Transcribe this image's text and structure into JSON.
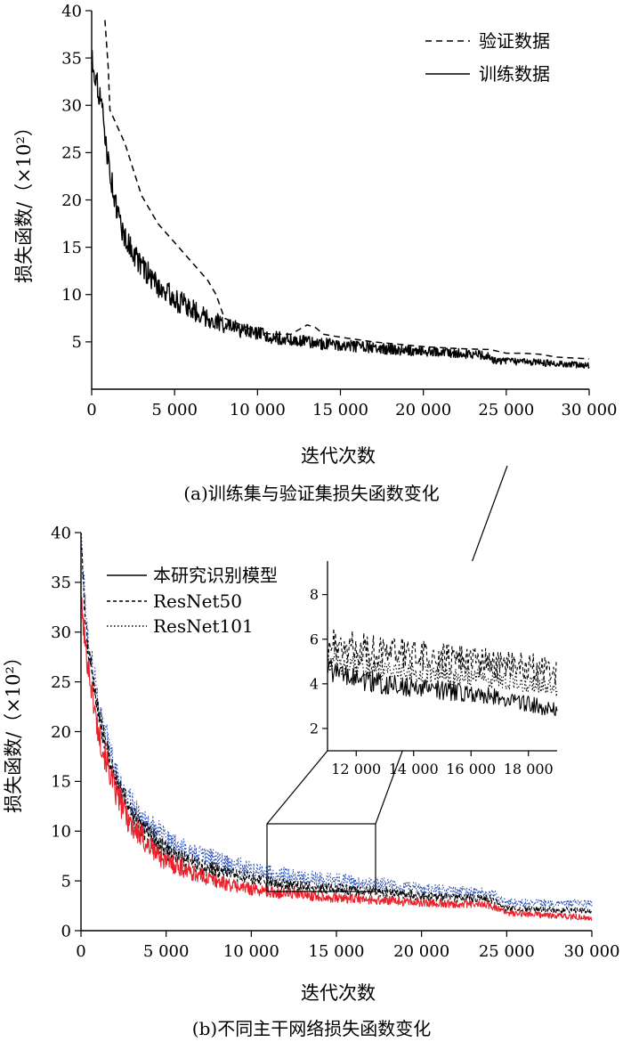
{
  "chart_data": [
    {
      "id": "a",
      "type": "line",
      "caption": "(a)训练集与验证集损失函数变化",
      "xlabel": "迭代次数",
      "ylabel": "损失函数/（×10²）",
      "xlim": [
        0,
        30000
      ],
      "ylim": [
        0,
        40
      ],
      "x_ticks": [
        0,
        5000,
        10000,
        15000,
        20000,
        25000,
        30000
      ],
      "x_tick_labels": [
        "0",
        "5 000",
        "10 000",
        "15 000",
        "20 000",
        "25 000",
        "30 000"
      ],
      "y_ticks": [
        5,
        10,
        15,
        20,
        25,
        30,
        35,
        40
      ],
      "y_tick_labels": [
        "5",
        "10",
        "15",
        "20",
        "25",
        "30",
        "35",
        "40"
      ],
      "legend_position": "top-right",
      "series": [
        {
          "name": "验证数据",
          "style": "dashed",
          "color": "#000000",
          "noise": 0,
          "x": [
            800,
            1000,
            1100,
            2000,
            3000,
            4000,
            5000,
            6000,
            7000,
            7500,
            8000,
            9000,
            10000,
            11000,
            12000,
            13000,
            13500,
            14000,
            15000,
            17000,
            20000,
            22000,
            23800,
            24000,
            25000,
            26000,
            27000,
            28000,
            30000
          ],
          "values": [
            39,
            34,
            29.5,
            26,
            20.5,
            17.5,
            15.5,
            13.5,
            11.5,
            10,
            7.5,
            6.8,
            6,
            5.8,
            5.8,
            6.8,
            6.5,
            5.8,
            5.5,
            5.0,
            4.5,
            4.3,
            4.2,
            4.2,
            3.8,
            3.8,
            3.7,
            3.4,
            3.2
          ]
        },
        {
          "name": "训练数据",
          "style": "solid",
          "color": "#000000",
          "noise": 0.8,
          "x": [
            0,
            300,
            600,
            1000,
            1500,
            2000,
            3000,
            4000,
            5000,
            6000,
            7000,
            8000,
            9000,
            10000,
            12000,
            14000,
            16000,
            18000,
            20000,
            22000,
            23800,
            24200,
            26000,
            28000,
            30000
          ],
          "values": [
            35,
            32.5,
            30,
            24,
            19,
            16,
            13,
            11,
            9.5,
            8.5,
            7.5,
            6.8,
            6.2,
            5.8,
            5.2,
            4.8,
            4.5,
            4.2,
            4.0,
            3.8,
            3.6,
            3.0,
            2.9,
            2.7,
            2.5
          ]
        }
      ]
    },
    {
      "id": "b",
      "type": "line",
      "caption": "(b)不同主干网络损失函数变化",
      "xlabel": "迭代次数",
      "ylabel": "损失函数/（×10²）",
      "xlim": [
        0,
        30000
      ],
      "ylim": [
        0,
        40
      ],
      "x_ticks": [
        0,
        5000,
        10000,
        15000,
        20000,
        25000,
        30000
      ],
      "x_tick_labels": [
        "0",
        "5 000",
        "10 000",
        "15 000",
        "20 000",
        "25 000",
        "30 000"
      ],
      "y_ticks": [
        0,
        5,
        10,
        15,
        20,
        25,
        30,
        35,
        40
      ],
      "y_tick_labels": [
        "0",
        "5",
        "10",
        "15",
        "20",
        "25",
        "30",
        "35",
        "40"
      ],
      "legend_position": "top-center",
      "series": [
        {
          "name": "本研究识别模型",
          "style": "solid",
          "color": "#e8202a",
          "noise": 0.9,
          "x": [
            0,
            300,
            1000,
            2000,
            3000,
            4000,
            5000,
            7000,
            9000,
            11000,
            13000,
            15000,
            18000,
            20000,
            22000,
            24000,
            25000,
            30000
          ],
          "values": [
            33,
            28,
            20,
            14,
            10.5,
            8.5,
            7,
            5.5,
            4.5,
            3.9,
            3.6,
            3.3,
            3.0,
            2.8,
            2.7,
            2.6,
            1.8,
            1.3
          ]
        },
        {
          "name": "ResNet50",
          "style": "dashed",
          "color": "#000000",
          "noise": 0.8,
          "x": [
            0,
            300,
            1000,
            2000,
            3000,
            4000,
            5000,
            7000,
            9000,
            11000,
            13000,
            15000,
            18000,
            20000,
            22000,
            24000,
            25000,
            30000
          ],
          "values": [
            39,
            30,
            22,
            15,
            11.5,
            9.5,
            8,
            6.5,
            5.5,
            4.8,
            4.4,
            4.2,
            3.8,
            3.5,
            3.3,
            3.2,
            2.2,
            2.0
          ]
        },
        {
          "name": "ResNet101",
          "style": "dotted",
          "color": "#2a4fb5",
          "noise": 0.9,
          "x": [
            0,
            300,
            1000,
            2000,
            3000,
            4000,
            5000,
            7000,
            9000,
            11000,
            13000,
            15000,
            18000,
            20000,
            22000,
            24000,
            25000,
            30000
          ],
          "values": [
            40,
            31,
            23,
            16,
            12.5,
            10.5,
            9,
            7.5,
            6.5,
            5.8,
            5.3,
            5.0,
            4.6,
            4.2,
            3.9,
            3.8,
            2.8,
            2.7
          ]
        }
      ],
      "inset": {
        "xlim": [
          11000,
          19000
        ],
        "ylim": [
          1,
          9.5
        ],
        "x_ticks": [
          12000,
          14000,
          16000,
          18000
        ],
        "x_tick_labels": [
          "12 000",
          "14 000",
          "16 000",
          "18 000"
        ],
        "y_ticks": [
          2,
          4,
          6,
          8
        ],
        "y_tick_labels": [
          "2",
          "4",
          "6",
          "8"
        ],
        "zoom_box": {
          "x": [
            11000,
            17500
          ],
          "y": [
            3.5,
            11
          ]
        },
        "series": [
          {
            "name": "本研究识别模型",
            "style": "solid",
            "noise": 0.7,
            "x": [
              11000,
              12000,
              14000,
              16000,
              18000,
              19000
            ],
            "values": [
              4.6,
              4.2,
              3.8,
              3.6,
              3.1,
              2.8
            ]
          },
          {
            "name": "ResNet50",
            "style": "dashed",
            "noise": 0.8,
            "x": [
              11000,
              12000,
              14000,
              16000,
              18000,
              19000
            ],
            "values": [
              5.8,
              5.6,
              5.3,
              5.0,
              4.8,
              4.5
            ]
          },
          {
            "name": "ResNet101",
            "style": "dotted",
            "noise": 0.6,
            "x": [
              11000,
              12000,
              14000,
              16000,
              18000,
              19000
            ],
            "values": [
              5.0,
              4.8,
              4.5,
              4.3,
              4.0,
              3.8
            ]
          }
        ]
      }
    }
  ]
}
